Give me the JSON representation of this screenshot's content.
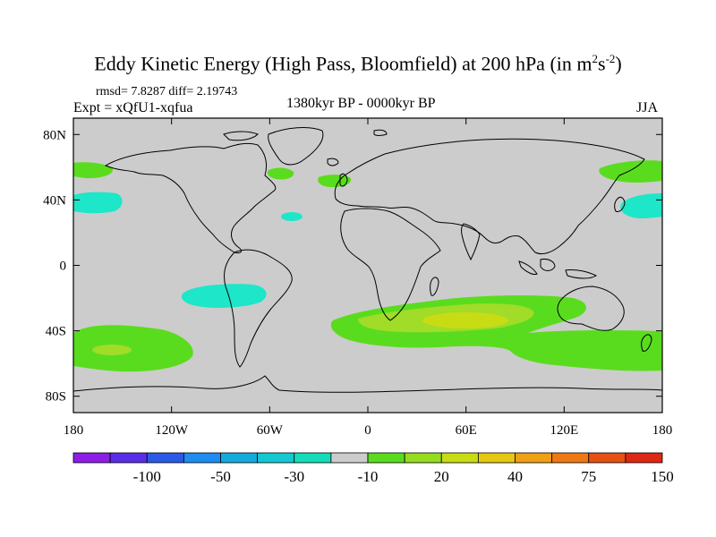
{
  "title": {
    "main": "Eddy Kinetic Energy (High Pass, Bloomfield) at 200 hPa (in m",
    "sup1": "2",
    "mid": "s",
    "sup2": "-2",
    "end": ")"
  },
  "stats": {
    "rmsd": "rmsd= 7.8287 diff= 2.19743",
    "expt": "Expt = xQfU1-xqfua",
    "period": "1380kyr BP - 0000kyr BP",
    "season": "JJA"
  },
  "axes": {
    "lat_ticks": [
      {
        "label": "80N",
        "value": 80
      },
      {
        "label": "40N",
        "value": 40
      },
      {
        "label": "0",
        "value": 0
      },
      {
        "label": "40S",
        "value": -40
      },
      {
        "label": "80S",
        "value": -80
      }
    ],
    "lon_ticks": [
      {
        "label": "180",
        "value": -180
      },
      {
        "label": "120W",
        "value": -120
      },
      {
        "label": "60W",
        "value": -60
      },
      {
        "label": "0",
        "value": 0
      },
      {
        "label": "60E",
        "value": 60
      },
      {
        "label": "120E",
        "value": 120
      },
      {
        "label": "180",
        "value": 180
      }
    ],
    "lat_range": [
      -90,
      90
    ],
    "lon_range": [
      -180,
      180
    ]
  },
  "colorbar": {
    "colors": [
      "#8c1ee6",
      "#5a2ee6",
      "#2a5ae6",
      "#1e8cf0",
      "#14aadc",
      "#14c8d2",
      "#14dcb9",
      "#cccccc",
      "#5adc1e",
      "#96dc1e",
      "#c8dc14",
      "#e6c814",
      "#f0a014",
      "#f07814",
      "#e65014",
      "#dc2814"
    ],
    "labels": [
      "-100",
      "-50",
      "-30",
      "-10",
      "20",
      "40",
      "75",
      "150"
    ]
  },
  "regions": {
    "fill_cyan": "#1ee6c8",
    "fill_green": "#5adc1e",
    "fill_lime": "#a0dc28",
    "fill_yellow": "#d2dc1e",
    "background": "#cccccc"
  }
}
